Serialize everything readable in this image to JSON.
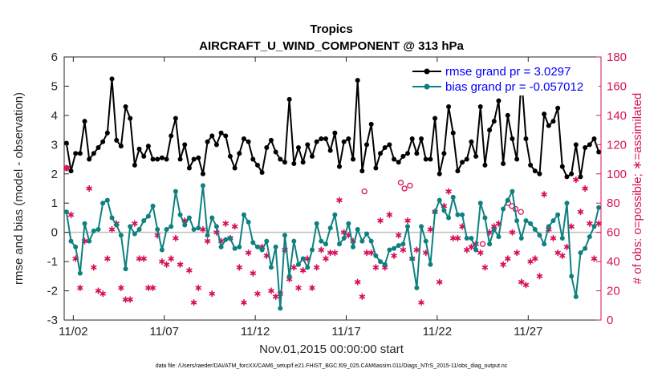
{
  "chart_data": {
    "type": "line",
    "title": "Tropics",
    "subtitle": "AIRCRAFT_U_WIND_COMPONENT @ 313 hPa",
    "xlabel": "Nov.01,2015 00:00:00 start",
    "ylabel_left": "rmse and bias (model - observation)",
    "ylabel_right": "# of obs: o=possible; ∗=assimilated",
    "footer": "data file: /Users/raeder/DAI/ATM_forcXX/CAM6_setup/f.e21.FHIST_BGC.f09_025.CAM6assim.011/Diags_NTrS_2015-11/obs_diag_output.nc",
    "xlim": [
      1.5,
      31.0
    ],
    "ylim_left": [
      -3,
      6
    ],
    "ylim_right": [
      0,
      180
    ],
    "x_ticks": [
      2,
      7,
      12,
      17,
      22,
      27
    ],
    "x_tick_labels": [
      "11/02",
      "11/07",
      "11/12",
      "11/17",
      "11/22",
      "11/27"
    ],
    "yleft_ticks": [
      -3,
      -2,
      -1,
      0,
      1,
      2,
      3,
      4,
      5,
      6
    ],
    "yleft_tick_labels": [
      "-3",
      "-2",
      "-1",
      "0",
      "1",
      "2",
      "3",
      "4",
      "5",
      "6"
    ],
    "yright_ticks": [
      0,
      20,
      40,
      60,
      80,
      100,
      120,
      140,
      160,
      180
    ],
    "yright_tick_labels": [
      "0",
      "20",
      "40",
      "60",
      "80",
      "100",
      "120",
      "140",
      "160",
      "180"
    ],
    "colors": {
      "rmse": "#000000",
      "bias": "#0e8080",
      "obs": "#d6115a",
      "zero_line": "#bdbdbd",
      "legend_text": "#0000ff",
      "axis": "#262626"
    },
    "legend": {
      "placement": "top-right",
      "entries": [
        {
          "name": "rmse grand pr = 3.0297",
          "series": "rmse"
        },
        {
          "name": "bias grand pr = -0.057012",
          "series": "bias"
        }
      ]
    },
    "x": [
      1.625,
      1.875,
      2.125,
      2.375,
      2.625,
      2.875,
      3.125,
      3.375,
      3.625,
      3.875,
      4.125,
      4.375,
      4.625,
      4.875,
      5.125,
      5.375,
      5.625,
      5.875,
      6.125,
      6.375,
      6.625,
      6.875,
      7.125,
      7.375,
      7.625,
      7.875,
      8.125,
      8.375,
      8.625,
      8.875,
      9.125,
      9.375,
      9.625,
      9.875,
      10.125,
      10.375,
      10.625,
      10.875,
      11.125,
      11.375,
      11.625,
      11.875,
      12.125,
      12.375,
      12.625,
      12.875,
      13.125,
      13.375,
      13.625,
      13.875,
      14.125,
      14.375,
      14.625,
      14.875,
      15.125,
      15.375,
      15.625,
      15.875,
      16.125,
      16.375,
      16.625,
      16.875,
      17.125,
      17.375,
      17.625,
      17.875,
      18.125,
      18.375,
      18.625,
      18.875,
      19.125,
      19.375,
      19.625,
      19.875,
      20.125,
      20.375,
      20.625,
      20.875,
      21.125,
      21.375,
      21.625,
      21.875,
      22.125,
      22.375,
      22.625,
      22.875,
      23.125,
      23.375,
      23.625,
      23.875,
      24.125,
      24.375,
      24.625,
      24.875,
      25.125,
      25.375,
      25.625,
      25.875,
      26.125,
      26.375,
      26.625,
      26.875,
      27.125,
      27.375,
      27.625,
      27.875,
      28.125,
      28.375,
      28.625,
      28.875,
      29.125,
      29.375,
      29.625,
      29.875,
      30.125,
      30.375,
      30.625,
      30.875
    ],
    "series": [
      {
        "name": "rmse",
        "axis": "left",
        "values": [
          3.05,
          2.1,
          2.7,
          2.7,
          3.8,
          2.5,
          2.7,
          2.9,
          3.1,
          3.4,
          5.25,
          3.15,
          2.95,
          4.3,
          3.9,
          2.3,
          2.85,
          2.6,
          2.95,
          2.5,
          2.5,
          2.55,
          2.5,
          3.3,
          3.9,
          2.5,
          3.0,
          2.2,
          2.5,
          2.55,
          2.0,
          3.1,
          3.3,
          3.0,
          3.4,
          3.3,
          2.6,
          2.2,
          2.7,
          3.2,
          3.1,
          2.5,
          2.3,
          2.05,
          2.9,
          3.15,
          2.75,
          2.5,
          2.4,
          4.55,
          2.35,
          2.9,
          2.4,
          3.0,
          2.6,
          3.1,
          3.2,
          3.2,
          2.8,
          3.4,
          2.25,
          3.1,
          3.2,
          2.5,
          5.2,
          2.1,
          3.0,
          3.7,
          2.2,
          2.7,
          2.9,
          3.0,
          2.5,
          2.4,
          2.6,
          2.7,
          3.2,
          2.7,
          3.2,
          2.5,
          2.5,
          3.9,
          2.0,
          2.7,
          4.3,
          3.4,
          2.1,
          2.4,
          2.5,
          3.1,
          2.6,
          4.3,
          2.3,
          3.5,
          3.8,
          4.5,
          2.35,
          4.0,
          3.2,
          2.5,
          5.35,
          3.2,
          2.3,
          2.1,
          2.0,
          4.05,
          3.65,
          3.8,
          4.25,
          2.25,
          1.9,
          2.0,
          3.0,
          1.9,
          2.9,
          3.0,
          3.2,
          2.75
        ]
      },
      {
        "name": "bias",
        "axis": "left",
        "values": [
          0.7,
          -0.3,
          -0.5,
          -1.4,
          0.3,
          -0.3,
          0.05,
          0.1,
          1.0,
          1.1,
          0.5,
          0.25,
          -0.1,
          -1.25,
          0.2,
          -0.05,
          0.1,
          0.4,
          0.55,
          0.9,
          0.1,
          -0.6,
          0.1,
          0.2,
          1.4,
          0.6,
          0.25,
          0.5,
          0.1,
          0.15,
          1.6,
          -0.1,
          0.5,
          0.2,
          -0.5,
          -0.25,
          -0.2,
          -0.55,
          -0.5,
          0.6,
          0.35,
          -0.35,
          -0.5,
          -0.6,
          -0.3,
          -1.2,
          -0.5,
          -2.6,
          -0.1,
          -1.5,
          -0.3,
          -1.1,
          -0.9,
          -1.2,
          -0.6,
          0.3,
          -0.3,
          -0.4,
          0.15,
          0.6,
          -0.4,
          -0.2,
          0.3,
          -0.5,
          0.1,
          -0.3,
          -0.05,
          -0.3,
          -0.8,
          -1.0,
          -1.1,
          -0.6,
          -0.55,
          -0.45,
          -0.4,
          0.2,
          -0.9,
          -1.9,
          0.2,
          -0.3,
          -1.1,
          0.7,
          1.1,
          0.75,
          0.5,
          1.2,
          0.6,
          0.6,
          -0.2,
          -0.2,
          -0.6,
          1.0,
          0.5,
          -0.4,
          0.1,
          -0.15,
          0.8,
          1.1,
          1.4,
          0.4,
          -0.2,
          0.4,
          0.3,
          0.1,
          -0.1,
          -0.4,
          0.2,
          0.4,
          0.6,
          -0.2,
          1.0,
          -1.5,
          -2.2,
          -0.7,
          -0.55,
          -0.15,
          0.2,
          0.85
        ]
      },
      {
        "name": "assimilated",
        "axis": "right",
        "marker": "asterisk",
        "values": [
          104,
          72,
          42,
          22,
          54,
          90,
          36,
          20,
          18,
          42,
          62,
          66,
          22,
          14,
          14,
          66,
          42,
          42,
          22,
          22,
          58,
          40,
          38,
          42,
          56,
          38,
          68,
          34,
          12,
          22,
          62,
          54,
          18,
          60,
          54,
          66,
          56,
          64,
          36,
          12,
          46,
          32,
          18,
          50,
          44,
          20,
          16,
          18,
          48,
          28,
          36,
          22,
          34,
          42,
          22,
          36,
          48,
          42,
          46,
          46,
          82,
          60,
          58,
          54,
          26,
          16,
          46,
          46,
          36,
          68,
          36,
          72,
          44,
          58,
          48,
          68,
          42,
          48,
          12,
          46,
          62,
          74,
          26,
          78,
          88,
          56,
          56,
          64,
          48,
          50,
          52,
          46,
          36,
          60,
          64,
          66,
          38,
          42,
          60,
          46,
          26,
          24,
          40,
          42,
          30,
          86,
          62,
          56,
          46,
          44,
          50,
          64,
          96,
          74,
          90,
          66,
          42,
          66
        ]
      },
      {
        "name": "possible",
        "axis": "right",
        "marker": "circle",
        "values": [
          104,
          null,
          null,
          null,
          null,
          null,
          null,
          null,
          null,
          null,
          null,
          null,
          null,
          null,
          null,
          null,
          null,
          null,
          null,
          null,
          null,
          null,
          null,
          null,
          null,
          null,
          null,
          null,
          null,
          null,
          null,
          null,
          null,
          null,
          null,
          null,
          null,
          null,
          null,
          null,
          null,
          null,
          null,
          null,
          null,
          null,
          null,
          null,
          null,
          null,
          null,
          null,
          null,
          null,
          null,
          null,
          null,
          null,
          null,
          null,
          null,
          null,
          null,
          null,
          null,
          null,
          null,
          null,
          null,
          null,
          null,
          null,
          null,
          null,
          null,
          null,
          null,
          null,
          null,
          null,
          null,
          null,
          null,
          null,
          null,
          null,
          null,
          null,
          null,
          null,
          null,
          null,
          null,
          null,
          null,
          null,
          null,
          null,
          null,
          null,
          null,
          null,
          null,
          null,
          null,
          null,
          null,
          null,
          null,
          null,
          null,
          null,
          null,
          null,
          null,
          null,
          null,
          null
        ]
      },
      {
        "name": "possible_extra",
        "axis": "right",
        "marker": "circle",
        "x": [
          18.0,
          20.0,
          20.2,
          20.5,
          24.5,
          25.9,
          26.1,
          26.3,
          26.6
        ],
        "values": [
          88,
          94,
          90,
          92,
          52,
          80,
          78,
          76,
          74
        ]
      }
    ]
  }
}
